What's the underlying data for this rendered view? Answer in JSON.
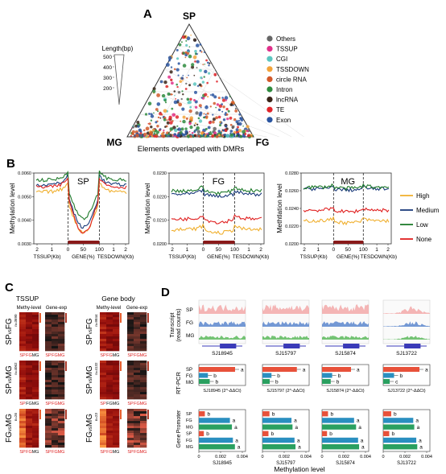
{
  "colors": {
    "Others": "#666666",
    "TSSUP": "#e0308a",
    "CGI": "#5cc6c0",
    "TSSDOWN": "#f2a33a",
    "circle RNA": "#d2592a",
    "Intron": "#2e8b3e",
    "lncRNA": "#3a2418",
    "TE": "#e0242a",
    "Exon": "#2a55a0",
    "High": "#f0b030",
    "Medium": "#1a3a7a",
    "Low": "#1e7a2a",
    "None": "#e02020",
    "sp_track": "#f2a8a8",
    "fg_track": "#5a86cc",
    "mg_track": "#5cb85c",
    "bar_red": "#e8513a",
    "bar_blue": "#2a8fc0",
    "bar_green": "#2aa060",
    "gene_box": "#3a3ab8"
  },
  "panelA": {
    "label": "A",
    "top": "SP",
    "left": "MG",
    "right": "FG",
    "xlabel": "Elements overlaped with DMRs",
    "size_legend_title": "Length(bp)",
    "size_ticks": [
      "500",
      "400",
      "300",
      "200"
    ],
    "legend": [
      "Others",
      "TSSUP",
      "CGI",
      "TSSDOWN",
      "circle RNA",
      "Intron",
      "lncRNA",
      "TE",
      "Exon"
    ]
  },
  "panelB": {
    "label": "B",
    "legend": [
      "High",
      "Medium",
      "Low",
      "None"
    ],
    "x_ticks_up": [
      "2",
      "1",
      "0"
    ],
    "x_ticks_gene": [
      "50",
      "100"
    ],
    "x_ticks_down": [
      "1",
      "2"
    ],
    "x_names": [
      "TSSUP(Kb)",
      "GENE(%)",
      "TESDOWN(Kb)"
    ],
    "plots": [
      {
        "title": "SP",
        "ylabel": "Methylation level",
        "ylim": [
          0.003,
          0.006
        ],
        "yticks": [
          "0.0060",
          "0.0050",
          "0.0040",
          "0.0030"
        ]
      },
      {
        "title": "FG",
        "ylabel": "Methylation level",
        "ylim": [
          0.02,
          0.024
        ],
        "yticks": [
          "0.0230",
          "0.0220",
          "0.0210",
          "0.0200"
        ]
      },
      {
        "title": "MG",
        "ylabel": "Methtlation level",
        "ylim": [
          0.02,
          0.028
        ],
        "yticks": [
          "0.0280",
          "0.0260",
          "0.0240",
          "0.0220",
          "0.0200"
        ]
      }
    ]
  },
  "panelC": {
    "label": "C",
    "group_left": "TSSUP",
    "group_right": "Gene body",
    "col_titles": [
      "Methy-level",
      "Gene-exp"
    ],
    "col_labels": [
      "SP",
      "FG",
      "MG"
    ],
    "rows": [
      {
        "name": "SP",
        "vs": "vs",
        "name2": "FG",
        "n": "n=3690",
        "n2": "n=9844"
      },
      {
        "name": "SP",
        "vs": "vs",
        "name2": "MG",
        "n": "n=4062",
        "n2": "n=4132"
      },
      {
        "name": "FG",
        "vs": "vs",
        "name2": "MG",
        "n": "n=26",
        "n2": "n=23"
      }
    ]
  },
  "panelD": {
    "label": "D",
    "transcript_ylabel": "Transcript\n(read counts)",
    "track_labels": [
      "SP",
      "FG",
      "MG"
    ],
    "genes": [
      "SJ18945",
      "SJ15797",
      "SJ15874",
      "SJ13722"
    ],
    "rtpcr_label": "RT-PCR",
    "rtpcr_labels": [
      "SJ18945 (2^-ΔΔCt)",
      "SJ15797 (2^-ΔΔCt)",
      "SJ15874 (2^-ΔΔCt)",
      "SJ13722 (2^-ΔΔCt)"
    ],
    "rtpcr_ticks": [
      "0",
      "0.4",
      "0.8",
      "1.2"
    ],
    "rtpcr": [
      {
        "values": [
          1.0,
          0.25,
          0.3
        ],
        "letters": [
          "a",
          "b",
          "b"
        ]
      },
      {
        "values": [
          0.95,
          0.25,
          0.2
        ],
        "letters": [
          "a",
          "b",
          "b"
        ]
      },
      {
        "values": [
          0.8,
          0.28,
          0.24
        ],
        "letters": [
          "a",
          "b",
          "b"
        ]
      },
      {
        "values": [
          1.0,
          0.3,
          0.18
        ],
        "letters": [
          "a",
          "b",
          "c"
        ]
      }
    ],
    "meth_labels_promoter": "Promoter",
    "meth_labels_gene": "Gene",
    "meth_groups": [
      "SP",
      "FG",
      "MG",
      "SP",
      "FG",
      "MG"
    ],
    "meth_ticks": [
      "0",
      "0.002",
      "0.004"
    ],
    "meth_xlabel": "Methylation level",
    "meth_xmax": 0.0045,
    "meth": [
      {
        "values": [
          0.0006,
          0.0031,
          0.0033,
          0.0005,
          0.0034,
          0.0036
        ],
        "letters": [
          "b",
          "a",
          "a",
          "b",
          "a",
          "a"
        ]
      },
      {
        "values": [
          0.0007,
          0.0029,
          0.003,
          0.0006,
          0.0032,
          0.0033
        ],
        "letters": [
          "b",
          "a",
          "a",
          "b",
          "a",
          "a"
        ]
      },
      {
        "values": [
          0.0006,
          0.0032,
          0.0034,
          0.0005,
          0.0036,
          0.0037
        ],
        "letters": [
          "b",
          "a",
          "a",
          "b",
          "a",
          "a"
        ]
      },
      {
        "values": [
          0.0008,
          0.003,
          0.0031,
          0.0006,
          0.0033,
          0.0034
        ],
        "letters": [
          "b",
          "a",
          "a",
          "b",
          "a",
          "a"
        ]
      }
    ]
  }
}
